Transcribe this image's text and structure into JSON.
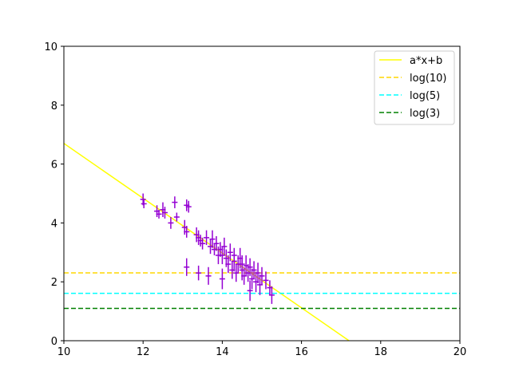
{
  "chart_data": {
    "type": "scatter",
    "title": "",
    "xlabel": "",
    "ylabel": "",
    "xlim": [
      10,
      20
    ],
    "ylim": [
      0,
      10
    ],
    "xticks": [
      "10",
      "12",
      "14",
      "16",
      "18",
      "20"
    ],
    "yticks": [
      "0",
      "2",
      "4",
      "6",
      "8",
      "10"
    ],
    "grid": false,
    "legend_position": "top-right",
    "series": [
      {
        "name": "a*x+b",
        "kind": "line",
        "style": "solid",
        "color": "#ffff00",
        "x": [
          10,
          17.2
        ],
        "y": [
          6.7,
          0
        ]
      },
      {
        "name": "log(10)",
        "kind": "hline",
        "style": "dashed",
        "color": "#ffd700",
        "y": 2.303
      },
      {
        "name": "log(5)",
        "kind": "hline",
        "style": "dashed",
        "color": "#00ffff",
        "y": 1.609
      },
      {
        "name": "log(3)",
        "kind": "hline",
        "style": "dashed",
        "color": "#008000",
        "y": 1.099
      }
    ],
    "errorbar_series": {
      "color": "#9400d3",
      "points": [
        [
          12.0,
          4.8,
          0.2
        ],
        [
          12.02,
          4.65,
          0.15
        ],
        [
          12.35,
          4.4,
          0.2
        ],
        [
          12.4,
          4.3,
          0.15
        ],
        [
          12.5,
          4.45,
          0.25
        ],
        [
          12.55,
          4.35,
          0.2
        ],
        [
          12.7,
          4.0,
          0.2
        ],
        [
          12.8,
          4.7,
          0.2
        ],
        [
          12.85,
          4.2,
          0.15
        ],
        [
          13.05,
          3.85,
          0.25
        ],
        [
          13.1,
          3.7,
          0.2
        ],
        [
          13.1,
          4.6,
          0.2
        ],
        [
          13.15,
          4.55,
          0.2
        ],
        [
          13.1,
          2.5,
          0.3
        ],
        [
          13.35,
          3.6,
          0.25
        ],
        [
          13.4,
          3.5,
          0.25
        ],
        [
          13.45,
          3.4,
          0.2
        ],
        [
          13.4,
          2.3,
          0.25
        ],
        [
          13.5,
          3.3,
          0.2
        ],
        [
          13.6,
          3.5,
          0.25
        ],
        [
          13.65,
          2.2,
          0.3
        ],
        [
          13.7,
          3.2,
          0.25
        ],
        [
          13.75,
          3.45,
          0.3
        ],
        [
          13.8,
          3.1,
          0.2
        ],
        [
          13.85,
          3.3,
          0.25
        ],
        [
          13.9,
          2.9,
          0.3
        ],
        [
          13.95,
          3.1,
          0.25
        ],
        [
          14.0,
          2.9,
          0.3
        ],
        [
          14.0,
          2.1,
          0.35
        ],
        [
          14.05,
          3.2,
          0.3
        ],
        [
          14.1,
          2.8,
          0.3
        ],
        [
          14.15,
          2.6,
          0.3
        ],
        [
          14.2,
          3.0,
          0.3
        ],
        [
          14.25,
          2.4,
          0.3
        ],
        [
          14.3,
          2.7,
          0.35
        ],
        [
          14.3,
          2.9,
          0.25
        ],
        [
          14.35,
          2.3,
          0.3
        ],
        [
          14.4,
          2.6,
          0.3
        ],
        [
          14.45,
          2.8,
          0.35
        ],
        [
          14.5,
          2.4,
          0.35
        ],
        [
          14.5,
          2.6,
          0.3
        ],
        [
          14.55,
          2.2,
          0.3
        ],
        [
          14.6,
          2.55,
          0.35
        ],
        [
          14.65,
          2.3,
          0.3
        ],
        [
          14.7,
          2.5,
          0.3
        ],
        [
          14.7,
          1.7,
          0.35
        ],
        [
          14.75,
          2.1,
          0.35
        ],
        [
          14.8,
          2.4,
          0.3
        ],
        [
          14.85,
          2.0,
          0.35
        ],
        [
          14.9,
          2.3,
          0.35
        ],
        [
          14.95,
          1.9,
          0.35
        ],
        [
          15.0,
          2.2,
          0.3
        ],
        [
          15.1,
          2.05,
          0.3
        ],
        [
          15.2,
          1.8,
          0.25
        ],
        [
          15.25,
          1.55,
          0.3
        ]
      ]
    }
  }
}
